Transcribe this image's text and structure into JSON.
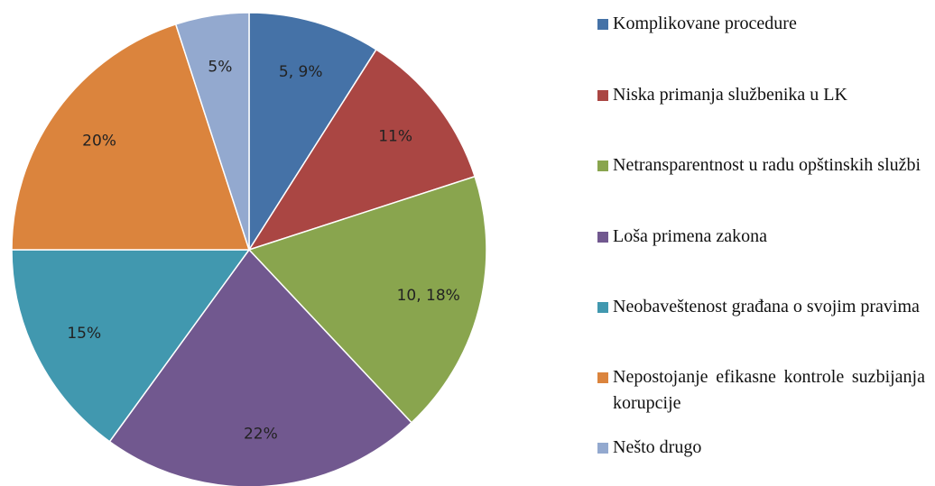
{
  "chart_data": {
    "type": "pie",
    "categories": [
      "Komplikovane procedure",
      "Niska primanja službenika u LK",
      "Netransparentnost u radu opštinskih službi",
      "Loša primena zakona",
      "Neobaveštenost građana o svojim pravima",
      "Nepostojanje efikasne kontrole suzbijanja korupcije",
      "Nešto drugo"
    ],
    "values": [
      9,
      11,
      18,
      22,
      15,
      20,
      5
    ],
    "value_labels": [
      "5, 9%",
      "11%",
      "10, 18%",
      "22%",
      "15%",
      "20%",
      "5%"
    ],
    "colors": [
      "#4572a7",
      "#aa4643",
      "#89a54e",
      "#71588f",
      "#4198af",
      "#db843d",
      "#93a9cf"
    ],
    "legend": "right"
  }
}
